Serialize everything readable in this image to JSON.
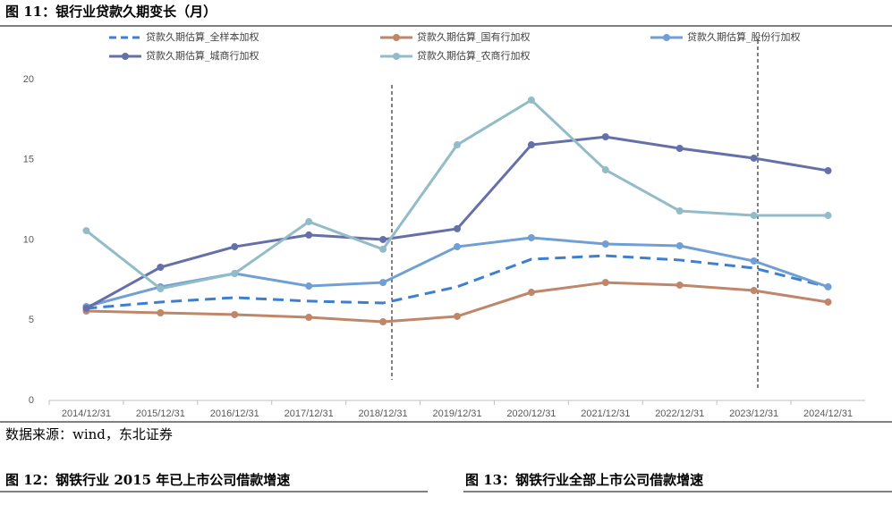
{
  "chart_data": {
    "type": "line",
    "title": "图 11：银行业贷款久期变长（月）",
    "categories": [
      "2014/12/31",
      "2015/12/31",
      "2016/12/31",
      "2017/12/31",
      "2018/12/31",
      "2019/12/31",
      "2020/12/31",
      "2021/12/31",
      "2022/12/31",
      "2023/12/31",
      "2024/12/31"
    ],
    "series": [
      {
        "name": "贷款久期估算_全样本加权",
        "color": "#3f7fcf",
        "line_style": "dashed",
        "values": [
          5.74,
          6.13,
          6.41,
          6.19,
          6.07,
          7.08,
          8.8,
          9.02,
          8.75,
          8.25,
          7.07
        ]
      },
      {
        "name": "贷款久期估算_国有行加权",
        "color": "#c0866a",
        "line_style": "solid",
        "values": [
          5.57,
          5.46,
          5.35,
          5.18,
          4.9,
          5.24,
          6.74,
          7.35,
          7.19,
          6.85,
          6.13
        ]
      },
      {
        "name": "贷款久期估算_股份行加权",
        "color": "#6f9fd4",
        "line_style": "solid",
        "values": [
          5.85,
          7.08,
          7.91,
          7.13,
          7.35,
          9.58,
          10.14,
          9.75,
          9.64,
          8.69,
          7.08
        ]
      },
      {
        "name": "贷款久期估算_城商行加权",
        "color": "#6670a8",
        "line_style": "solid",
        "values": [
          5.74,
          8.3,
          9.58,
          10.31,
          10.03,
          10.7,
          15.93,
          16.43,
          15.71,
          15.1,
          14.32
        ]
      },
      {
        "name": "贷款久期估算_农商行加权",
        "color": "#92bcc8",
        "line_style": "solid",
        "values": [
          10.58,
          6.96,
          7.91,
          11.14,
          9.42,
          15.93,
          18.72,
          14.37,
          11.81,
          11.53,
          11.53
        ]
      }
    ],
    "ylim": [
      0,
      20
    ],
    "yticks": [
      0,
      5,
      10,
      15,
      20
    ],
    "grid": false,
    "legend": "top"
  },
  "source": "数据来源：wind，东北证券",
  "figure_12_title": "图 12：钢铁行业 2015 年已上市公司借款增速",
  "figure_13_title": "图 13：钢铁行业全部上市公司借款增速"
}
